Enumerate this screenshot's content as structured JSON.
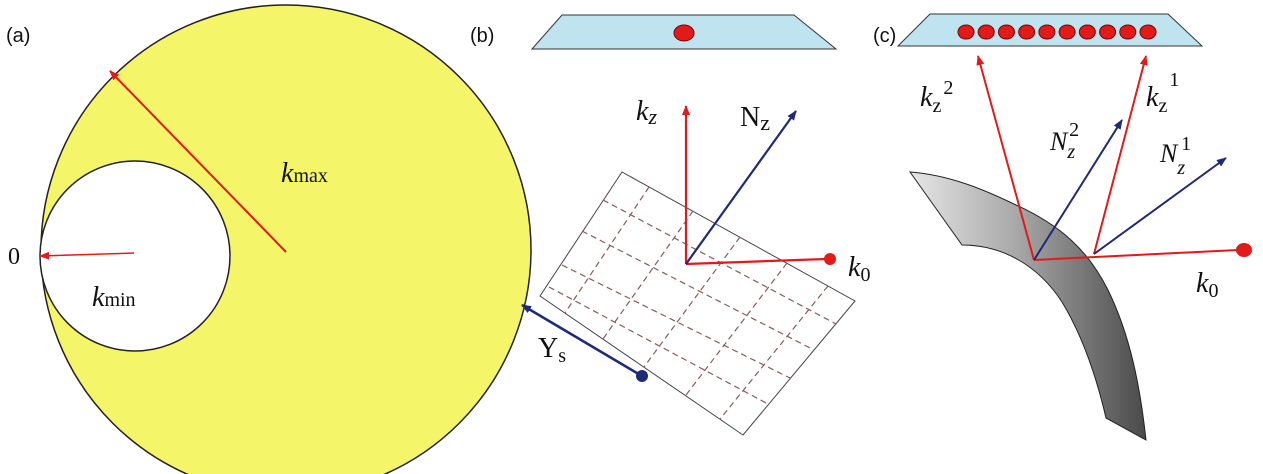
{
  "colors": {
    "yellow": "#f5f56a",
    "red": "#e31a1a",
    "navy": "#1f2a78",
    "crystal": "#bfe4ef",
    "grid_dash": "#8a5a5a",
    "stone_dark": "#5a5a5a",
    "stone_light": "#e0e0e0"
  },
  "panel_a": {
    "label": "(a)",
    "k_max_symbol": "k",
    "k_max_sub": "max",
    "k_min_symbol": "k",
    "k_min_sub": "min",
    "origin": "0"
  },
  "panel_b": {
    "label": "(b)",
    "kz_symbol": "k",
    "kz_sub": "z",
    "nz_symbol": "N",
    "nz_sub": "z",
    "k0_symbol": "k",
    "k0_sub": "0",
    "ys_symbol": "Y",
    "ys_sub": "s"
  },
  "panel_c": {
    "label": "(c)",
    "kz2_symbol": "k",
    "kz2_sub": "z",
    "kz2_sup": "2",
    "kz1_symbol": "k",
    "kz1_sub": "z",
    "kz1_sup": "1",
    "nz2_symbol": "N",
    "nz2_sub": "z",
    "nz2_sup": "2",
    "nz1_symbol": "N",
    "nz1_sub": "z",
    "nz1_sup": "1",
    "k0_symbol": "k",
    "k0_sub": "0",
    "dot_count": 10
  }
}
